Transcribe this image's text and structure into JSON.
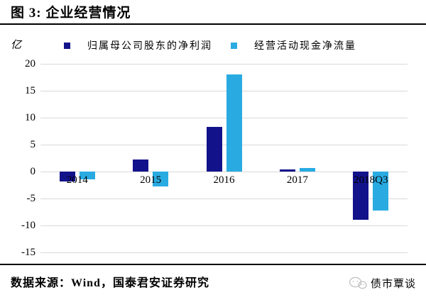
{
  "title": "图 3: 企业经营情况",
  "chart_data": {
    "type": "bar",
    "title": "企业经营情况",
    "unit_label": "亿",
    "categories": [
      "2014",
      "2015",
      "2016",
      "2017",
      "2018Q3"
    ],
    "series": [
      {
        "name": "归属母公司股东的净利润",
        "color": "#12128B",
        "values": [
          -1.8,
          2.2,
          8.3,
          0.4,
          -8.9
        ]
      },
      {
        "name": "经营活动现金净流量",
        "color": "#29ABE2",
        "values": [
          -1.5,
          -2.7,
          18.0,
          0.7,
          -7.2
        ]
      }
    ],
    "y_ticks": [
      20,
      15,
      10,
      5,
      0,
      -5,
      -10,
      -15
    ],
    "ylim": [
      -15,
      20
    ],
    "grid": true,
    "legend_position": "top",
    "gridline_color": "#D9D9D9"
  },
  "footer": {
    "source": "数据来源：Wind，国泰君安证券研究"
  },
  "watermark": {
    "label": "债市覃谈",
    "color": "#C5C5C5"
  }
}
